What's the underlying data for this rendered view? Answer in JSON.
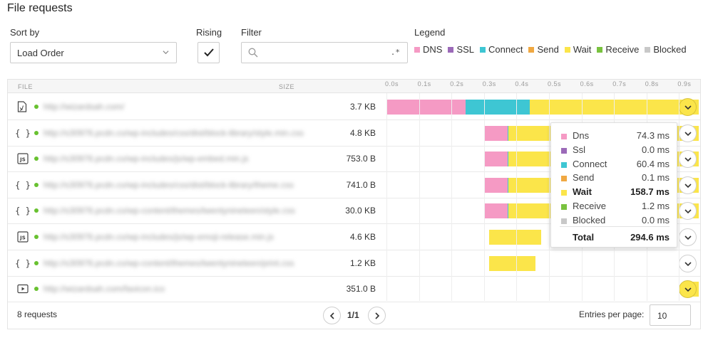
{
  "title": "File requests",
  "controls": {
    "sort_label": "Sort by",
    "sort_value": "Load Order",
    "rising_label": "Rising",
    "rising_checked": true,
    "filter_label": "Filter",
    "filter_value": "",
    "filter_regex_glyph": ".*",
    "legend_label": "Legend"
  },
  "legend": [
    {
      "label": "DNS",
      "color": "#f59ac4"
    },
    {
      "label": "SSL",
      "color": "#9b6ab8"
    },
    {
      "label": "Connect",
      "color": "#3ec6d3"
    },
    {
      "label": "Send",
      "color": "#f0a842"
    },
    {
      "label": "Wait",
      "color": "#fbe54a"
    },
    {
      "label": "Receive",
      "color": "#79c23f"
    },
    {
      "label": "Blocked",
      "color": "#c8c8c8"
    }
  ],
  "table": {
    "col_file": "FILE",
    "col_size": "SIZE",
    "ticks": [
      "0.0s",
      "0.1s",
      "0.2s",
      "0.3s",
      "0.4s",
      "0.5s",
      "0.6s",
      "0.7s",
      "0.8s",
      "0.9s"
    ],
    "rows": [
      {
        "icon": "page-icon",
        "url": "http://wizardsah.com/",
        "size": "3.7 KB",
        "timing": [
          {
            "phase": "dns",
            "start": 0.0,
            "end": 0.243
          },
          {
            "phase": "connect",
            "start": 0.243,
            "end": 0.44
          },
          {
            "phase": "wait",
            "start": 0.44,
            "end": 0.96
          }
        ]
      },
      {
        "icon": "css-icon",
        "url": "http://s30976.pcdn.co/wp-includes/css/dist/block-library/style.min.css",
        "size": "4.8 KB",
        "timing": [
          {
            "phase": "dns",
            "start": 0.3,
            "end": 0.372
          },
          {
            "phase": "connect",
            "start": 0.372,
            "end": 0.376
          },
          {
            "phase": "wait",
            "start": 0.376,
            "end": 0.96
          }
        ]
      },
      {
        "icon": "js-icon",
        "url": "http://s30976.pcdn.co/wp-includes/js/wp-embed.min.js",
        "size": "753.0 B",
        "timing": [
          {
            "phase": "dns",
            "start": 0.3,
            "end": 0.372
          },
          {
            "phase": "connect",
            "start": 0.372,
            "end": 0.376
          },
          {
            "phase": "wait",
            "start": 0.376,
            "end": 0.96
          }
        ]
      },
      {
        "icon": "css-icon",
        "url": "http://s30976.pcdn.co/wp-includes/css/dist/block-library/theme.css",
        "size": "741.0 B",
        "timing": [
          {
            "phase": "dns",
            "start": 0.3,
            "end": 0.372
          },
          {
            "phase": "connect",
            "start": 0.372,
            "end": 0.376
          },
          {
            "phase": "wait",
            "start": 0.376,
            "end": 0.96
          }
        ]
      },
      {
        "icon": "css-icon",
        "url": "http://s30976.pcdn.co/wp-content/themes/twentynineteen/style.css",
        "size": "30.0 KB",
        "timing": [
          {
            "phase": "dns",
            "start": 0.3,
            "end": 0.372
          },
          {
            "phase": "connect",
            "start": 0.372,
            "end": 0.376
          },
          {
            "phase": "wait",
            "start": 0.376,
            "end": 0.96
          }
        ]
      },
      {
        "icon": "js-icon",
        "url": "http://s30976.pcdn.co/wp-includes/js/wp-emoji-release.min.js",
        "size": "4.6 KB",
        "timing": [
          {
            "phase": "wait",
            "start": 0.315,
            "end": 0.475
          }
        ]
      },
      {
        "icon": "css-icon",
        "url": "http://s30976.pcdn.co/wp-content/themes/twentynineteen/print.css",
        "size": "1.2 KB",
        "timing": [
          {
            "phase": "wait",
            "start": 0.315,
            "end": 0.458
          }
        ]
      },
      {
        "icon": "media-icon",
        "url": "http://wizardsah.com/favicon.ico",
        "size": "351.0 B",
        "timing": [
          {
            "phase": "wait",
            "start": 0.935,
            "end": 0.96
          }
        ]
      }
    ]
  },
  "tooltip": {
    "items": [
      {
        "label": "Dns",
        "value": "74.3 ms",
        "color": "#f59ac4"
      },
      {
        "label": "Ssl",
        "value": "0.0 ms",
        "color": "#9b6ab8"
      },
      {
        "label": "Connect",
        "value": "60.4 ms",
        "color": "#3ec6d3"
      },
      {
        "label": "Send",
        "value": "0.1 ms",
        "color": "#f0a842"
      },
      {
        "label": "Wait",
        "value": "158.7 ms",
        "color": "#fbe54a"
      },
      {
        "label": "Receive",
        "value": "1.2 ms",
        "color": "#79c23f"
      },
      {
        "label": "Blocked",
        "value": "0.0 ms",
        "color": "#c8c8c8"
      }
    ],
    "total_label": "Total",
    "total_value": "294.6 ms"
  },
  "footer": {
    "count": "8 requests",
    "page": "1/1",
    "entries_label": "Entries per page:",
    "entries_value": "10"
  }
}
